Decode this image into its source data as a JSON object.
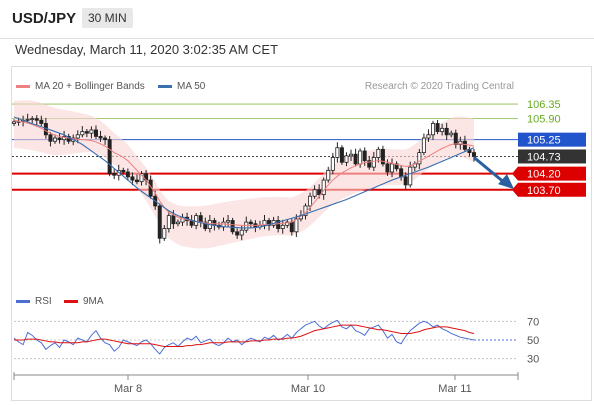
{
  "header": {
    "symbol": "USD/JPY",
    "timeframe": "30 MIN"
  },
  "timestamp": "Wednesday, March 11, 2020 3:02:35 AM CET",
  "legend": {
    "bollinger": "MA 20 + Bollinger Bands",
    "ma50": "MA 50"
  },
  "credit": "Research © 2020 Trading Central",
  "colors": {
    "bollinger": "#f08080",
    "ma50": "#3a6fb0",
    "resistance": "#88bb44",
    "pivot": "#2255cc",
    "support": "#dd0000",
    "candle": "#222222",
    "rsi": "#4b6fd4",
    "rsi_ma": "#dd1111",
    "arrow": "#2a5fa0"
  },
  "chart_data": [
    {
      "type": "candlestick",
      "title": "USD/JPY 30 MIN",
      "x_ticks": [
        "Mar 8",
        "Mar 10",
        "Mar 11"
      ],
      "ylim": [
        100.6,
        106.6
      ],
      "levels": [
        {
          "label": "106.35",
          "value": 106.35,
          "kind": "resistance"
        },
        {
          "label": "105.90",
          "value": 105.9,
          "kind": "resistance"
        },
        {
          "label": "105.25",
          "value": 105.25,
          "kind": "pivot"
        },
        {
          "label": "104.73",
          "value": 104.73,
          "kind": "last"
        },
        {
          "label": "104.20",
          "value": 104.2,
          "kind": "support"
        },
        {
          "label": "103.70",
          "value": 103.7,
          "kind": "support"
        }
      ],
      "close": [
        105.8,
        105.82,
        105.85,
        105.88,
        105.9,
        105.85,
        105.75,
        105.4,
        105.2,
        105.3,
        105.25,
        105.35,
        105.2,
        105.3,
        105.4,
        105.5,
        105.45,
        105.55,
        105.35,
        105.3,
        105.25,
        104.2,
        104.15,
        104.3,
        104.25,
        104.1,
        104.0,
        103.95,
        104.2,
        104.0,
        103.5,
        103.2,
        102.2,
        102.5,
        102.9,
        102.65,
        102.7,
        102.85,
        102.75,
        102.6,
        102.9,
        102.7,
        102.5,
        102.75,
        102.6,
        102.55,
        102.7,
        102.75,
        102.4,
        102.3,
        102.45,
        102.7,
        102.65,
        102.55,
        102.6,
        102.75,
        102.6,
        102.75,
        102.5,
        102.6,
        102.7,
        102.4,
        102.8,
        102.9,
        103.2,
        103.5,
        103.7,
        103.55,
        104.0,
        104.3,
        104.7,
        105.0,
        104.55,
        104.75,
        104.8,
        104.5,
        104.9,
        104.6,
        104.4,
        104.7,
        104.95,
        104.5,
        104.25,
        104.5,
        104.35,
        104.1,
        103.85,
        104.4,
        104.5,
        104.85,
        105.3,
        105.4,
        105.75,
        105.5,
        105.6,
        105.4,
        105.45,
        105.1,
        105.2,
        104.95,
        104.85,
        104.73
      ],
      "ma20": [
        105.85,
        105.82,
        105.8,
        105.76,
        105.72,
        105.66,
        105.6,
        105.52,
        105.45,
        105.38,
        105.35,
        105.32,
        105.3,
        105.28,
        105.26,
        105.25,
        105.24,
        105.22,
        105.18,
        105.12,
        105.05,
        104.95,
        104.85,
        104.78,
        104.7,
        104.6,
        104.45,
        104.3,
        104.15,
        104.0,
        103.8,
        103.6,
        103.35,
        103.15,
        103.0,
        102.92,
        102.85,
        102.8,
        102.78,
        102.75,
        102.72,
        102.7,
        102.68,
        102.66,
        102.65,
        102.65,
        102.64,
        102.63,
        102.62,
        102.61,
        102.6,
        102.6,
        102.6,
        102.6,
        102.61,
        102.62,
        102.63,
        102.64,
        102.65,
        102.66,
        102.68,
        102.7,
        102.78,
        102.88,
        103.0,
        103.15,
        103.32,
        103.5,
        103.68,
        103.85,
        104.0,
        104.12,
        104.22,
        104.3,
        104.38,
        104.44,
        104.5,
        104.54,
        104.56,
        104.58,
        104.6,
        104.58,
        104.55,
        104.52,
        104.48,
        104.45,
        104.42,
        104.44,
        104.5,
        104.58,
        104.66,
        104.74,
        104.82,
        104.9,
        104.98,
        105.04,
        105.1,
        105.12,
        105.12,
        105.1,
        105.08,
        105.05
      ],
      "ma50": [
        105.95,
        105.9,
        105.85,
        105.8,
        105.74,
        105.7,
        105.65,
        105.6,
        105.55,
        105.5,
        105.45,
        105.4,
        105.32,
        105.25,
        105.18,
        105.1,
        105.0,
        104.9,
        104.8,
        104.7,
        104.6,
        104.48,
        104.36,
        104.24,
        104.12,
        104.0,
        103.88,
        103.76,
        103.65,
        103.55,
        103.45,
        103.35,
        103.25,
        103.15,
        103.05,
        102.97,
        102.9,
        102.85,
        102.8,
        102.76,
        102.72,
        102.68,
        102.65,
        102.62,
        102.6,
        102.58,
        102.56,
        102.55,
        102.54,
        102.53,
        102.52,
        102.52,
        102.52,
        102.53,
        102.55,
        102.58,
        102.62,
        102.66,
        102.7,
        102.74,
        102.78,
        102.82,
        102.86,
        102.9,
        102.95,
        103.0,
        103.05,
        103.1,
        103.15,
        103.2,
        103.25,
        103.3,
        103.35,
        103.4,
        103.46,
        103.52,
        103.58,
        103.64,
        103.7,
        103.76,
        103.82,
        103.88,
        103.94,
        104.0,
        104.05,
        104.1,
        104.15,
        104.2,
        104.25,
        104.3,
        104.35,
        104.4,
        104.46,
        104.52,
        104.58,
        104.64,
        104.7,
        104.76,
        104.82,
        104.88,
        104.94,
        105.0
      ]
    },
    {
      "type": "line",
      "series": [
        {
          "name": "RSI",
          "values": [
            52,
            48,
            45,
            58,
            55,
            50,
            47,
            40,
            44,
            47,
            42,
            50,
            48,
            45,
            52,
            50,
            48,
            55,
            60,
            52,
            47,
            45,
            38,
            42,
            50,
            48,
            46,
            44,
            48,
            50,
            46,
            40,
            35,
            42,
            45,
            47,
            43,
            48,
            52,
            50,
            54,
            47,
            49,
            51,
            46,
            44,
            47,
            52,
            48,
            50,
            45,
            49,
            52,
            50,
            48,
            53,
            51,
            55,
            50,
            52,
            56,
            52,
            58,
            62,
            66,
            68,
            70,
            65,
            62,
            66,
            69,
            71,
            64,
            62,
            66,
            60,
            58,
            55,
            62,
            64,
            66,
            60,
            52,
            56,
            48,
            46,
            54,
            60,
            64,
            68,
            70,
            68,
            64,
            66,
            62,
            60,
            57,
            55,
            53,
            52,
            51,
            50
          ]
        },
        {
          "name": "9MA",
          "values": [
            50,
            50,
            50,
            51,
            51,
            51,
            50,
            49,
            48,
            48,
            47,
            47,
            47,
            47,
            47,
            48,
            48,
            49,
            50,
            51,
            51,
            50,
            49,
            48,
            47,
            46,
            46,
            46,
            46,
            46,
            46,
            45,
            44,
            43,
            43,
            43,
            43,
            43,
            44,
            44,
            45,
            45,
            46,
            47,
            47,
            47,
            47,
            48,
            48,
            48,
            48,
            48,
            49,
            49,
            49,
            50,
            50,
            51,
            51,
            51,
            52,
            52,
            53,
            54,
            56,
            58,
            60,
            61,
            62,
            63,
            64,
            65,
            66,
            66,
            66,
            66,
            65,
            64,
            63,
            62,
            61,
            61,
            60,
            59,
            58,
            57,
            57,
            57,
            58,
            59,
            61,
            62,
            63,
            64,
            64,
            64,
            63,
            62,
            61,
            60,
            58,
            57
          ]
        }
      ],
      "ylim": [
        20,
        80
      ],
      "y_ticks": [
        "70",
        "50",
        "30"
      ],
      "x_ticks": [
        "Mar 8",
        "Mar 10",
        "Mar 11"
      ]
    }
  ]
}
